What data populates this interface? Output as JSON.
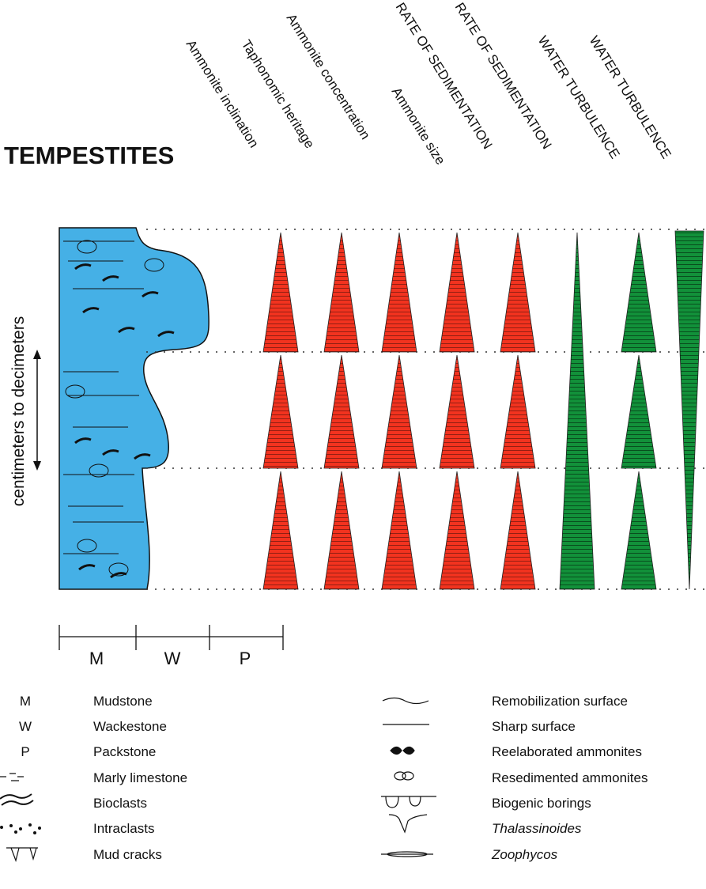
{
  "title": "TEMPESTITES",
  "headers": [
    "Ammonite inclination",
    "Taphonomic heritage",
    "Ammonite concentration",
    "Ammonite size",
    "RATE OF SEDIMENTATION",
    "RATE OF SEDIMENTATION",
    "WATER TURBULENCE",
    "WATER TURBULENCE"
  ],
  "side_label": "centimeters to decimeters",
  "scale": [
    "M",
    "W",
    "P"
  ],
  "legend_left": {
    "abbreviations": [
      "M",
      "W",
      "P"
    ],
    "items": [
      "Mudstone",
      "Wackestone",
      "Packstone",
      "Marly limestone",
      "Bioclasts",
      "Intraclasts",
      "Mud cracks"
    ]
  },
  "legend_right": {
    "items": [
      "Remobilization surface",
      "Sharp surface",
      "Reelaborated ammonites",
      "Resedimented ammonites",
      "Biogenic borings",
      "Thalassinoides",
      "Zoophycos"
    ]
  }
}
